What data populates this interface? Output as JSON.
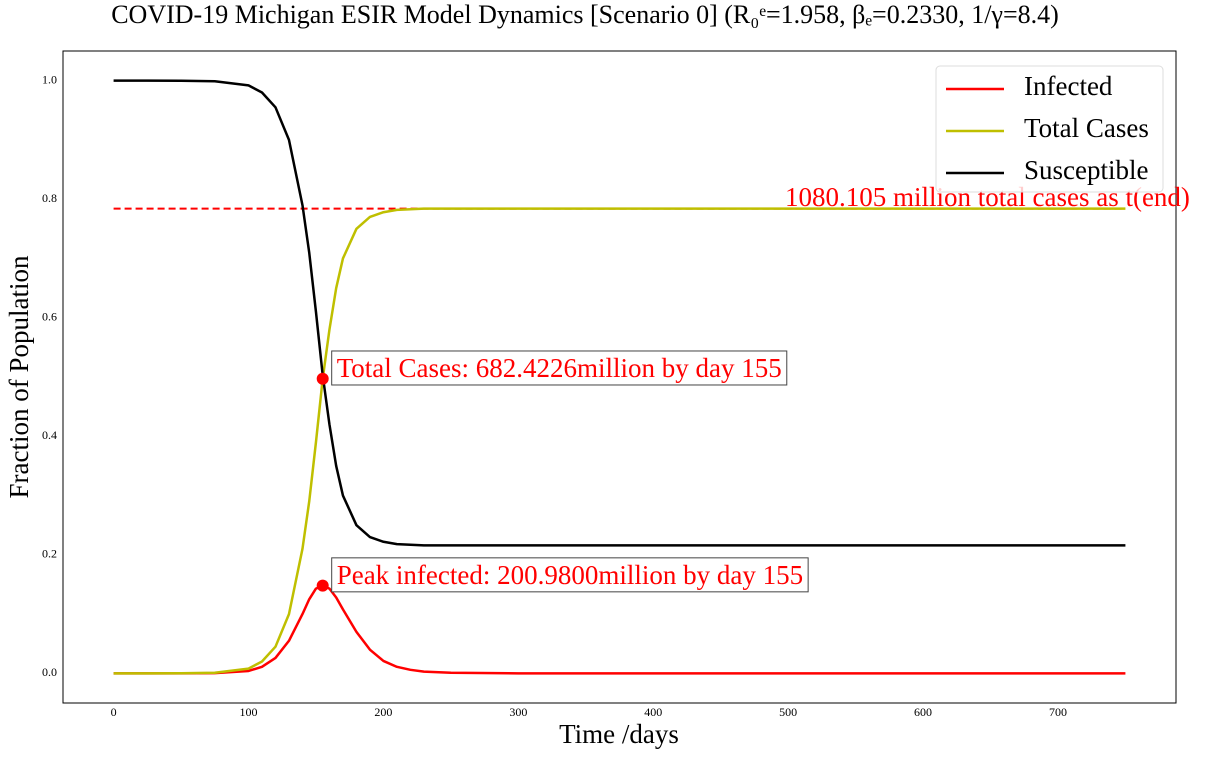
{
  "chart_data": {
    "type": "line",
    "title": "COVID-19 Michigan ESIR Model Dynamics [Scenario 0] (R₀ᵉ=1.958, βₑ=0.2330, 1/γ=8.4)",
    "xlabel": "Time /days",
    "ylabel": "Fraction of Population",
    "x": [
      0,
      25,
      50,
      75,
      100,
      110,
      120,
      130,
      140,
      145,
      150,
      155,
      160,
      165,
      170,
      180,
      190,
      200,
      210,
      220,
      230,
      250,
      300,
      400,
      500,
      600,
      700,
      750
    ],
    "series": [
      {
        "name": "Infected",
        "color": "#ff0000",
        "values": [
          0,
          0,
          0,
          0.0005,
          0.004,
          0.011,
          0.026,
          0.055,
          0.1,
          0.125,
          0.143,
          0.148,
          0.143,
          0.128,
          0.108,
          0.07,
          0.04,
          0.021,
          0.011,
          0.006,
          0.003,
          0.001,
          0,
          0,
          0,
          0,
          0,
          0
        ]
      },
      {
        "name": "Total Cases",
        "color": "#bfbf00",
        "values": [
          0,
          0,
          0.0001,
          0.001,
          0.008,
          0.02,
          0.045,
          0.1,
          0.21,
          0.29,
          0.39,
          0.497,
          0.58,
          0.65,
          0.7,
          0.75,
          0.77,
          0.778,
          0.782,
          0.783,
          0.784,
          0.784,
          0.784,
          0.784,
          0.784,
          0.784,
          0.784,
          0.784
        ]
      },
      {
        "name": "Susceptible",
        "color": "#000000",
        "values": [
          1,
          1,
          0.9999,
          0.999,
          0.992,
          0.98,
          0.955,
          0.9,
          0.79,
          0.71,
          0.61,
          0.503,
          0.42,
          0.35,
          0.3,
          0.25,
          0.23,
          0.222,
          0.218,
          0.217,
          0.216,
          0.216,
          0.216,
          0.216,
          0.216,
          0.216,
          0.216,
          0.216
        ]
      }
    ],
    "hline": {
      "y": 0.784,
      "xmin": 0,
      "xmax": 750,
      "color": "#ff0000",
      "label": "1080.105 million total cases as t(end)"
    },
    "annotations": [
      {
        "text": "Total Cases: 682.4226million by day 155",
        "x": 155,
        "y": 0.497
      },
      {
        "text": "Peak infected: 200.9800million by day 155",
        "x": 155,
        "y": 0.148
      }
    ],
    "xlim": [
      -37.5,
      787.5
    ],
    "ylim": [
      -0.05,
      1.05
    ],
    "xticks": [
      0,
      100,
      200,
      300,
      400,
      500,
      600,
      700
    ],
    "yticks": [
      {
        "value": 0.0,
        "label": "0.0"
      },
      0.2,
      0.4,
      0.6,
      0.8,
      {
        "value": 1.0,
        "label": "1.0"
      }
    ],
    "legend": "upper right",
    "grid": false
  }
}
